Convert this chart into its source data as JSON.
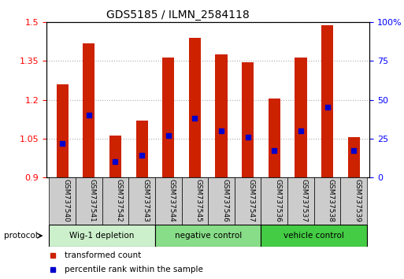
{
  "title": "GDS5185 / ILMN_2584118",
  "samples": [
    "GSM737540",
    "GSM737541",
    "GSM737542",
    "GSM737543",
    "GSM737544",
    "GSM737545",
    "GSM737546",
    "GSM737547",
    "GSM737536",
    "GSM737537",
    "GSM737538",
    "GSM737539"
  ],
  "red_values": [
    1.26,
    1.42,
    1.06,
    1.12,
    1.365,
    1.44,
    1.375,
    1.345,
    1.205,
    1.365,
    1.49,
    1.055
  ],
  "blue_values_pct": [
    22,
    40,
    10,
    14,
    27,
    38,
    30,
    26,
    17,
    30,
    45,
    17
  ],
  "ylim_left": [
    0.9,
    1.5
  ],
  "ylim_right": [
    0,
    100
  ],
  "yticks_left": [
    0.9,
    1.05,
    1.2,
    1.35,
    1.5
  ],
  "yticks_right": [
    0,
    25,
    50,
    75,
    100
  ],
  "groups": [
    {
      "label": "Wig-1 depletion",
      "indices": [
        0,
        1,
        2,
        3
      ],
      "color": "#ccf0cc"
    },
    {
      "label": "negative control",
      "indices": [
        4,
        5,
        6,
        7
      ],
      "color": "#88dd88"
    },
    {
      "label": "vehicle control",
      "indices": [
        8,
        9,
        10,
        11
      ],
      "color": "#44cc44"
    }
  ],
  "bar_color": "#cc2200",
  "blue_color": "#0000cc",
  "bar_width": 0.45,
  "grid_color": "#aaaaaa",
  "sample_bg": "#cccccc",
  "baseline": 0.9,
  "fig_width": 5.13,
  "fig_height": 3.54,
  "dpi": 100
}
